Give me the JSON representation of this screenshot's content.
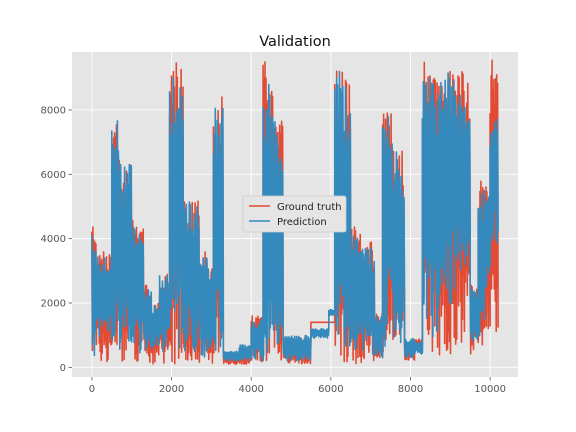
{
  "chart_data": {
    "type": "line",
    "title": "Validation",
    "xlabel": "",
    "ylabel": "",
    "xlim": [
      -500,
      10700
    ],
    "ylim": [
      -300,
      9800
    ],
    "x_ticks": [
      0,
      2000,
      4000,
      6000,
      8000,
      10000
    ],
    "y_ticks": [
      0,
      2000,
      4000,
      6000,
      8000
    ],
    "grid": true,
    "legend_placement": "center",
    "colors": {
      "Ground truth": "#E24A33",
      "Prediction": "#348ABD",
      "background": "#E5E5E5",
      "grid": "#FFFFFF"
    },
    "series": [
      {
        "name": "Ground truth",
        "segments": [
          [
            0,
            100,
            300,
            4500
          ],
          [
            100,
            500,
            100,
            3600
          ],
          [
            500,
            700,
            200,
            8000
          ],
          [
            700,
            1000,
            100,
            6400
          ],
          [
            1000,
            1300,
            100,
            4700
          ],
          [
            1300,
            1500,
            100,
            2600
          ],
          [
            1500,
            1700,
            100,
            2000
          ],
          [
            1700,
            1950,
            100,
            3000
          ],
          [
            1950,
            2300,
            100,
            9500
          ],
          [
            2300,
            2700,
            100,
            5300
          ],
          [
            2700,
            2900,
            100,
            3800
          ],
          [
            2900,
            3050,
            100,
            3200
          ],
          [
            3050,
            3300,
            100,
            8400
          ],
          [
            3300,
            3700,
            100,
            400
          ],
          [
            3700,
            4000,
            100,
            600
          ],
          [
            4000,
            4300,
            100,
            1600
          ],
          [
            4300,
            4550,
            200,
            9500
          ],
          [
            4550,
            4800,
            100,
            8000
          ],
          [
            4800,
            5500,
            100,
            900
          ],
          [
            5500,
            5950,
            1400,
            1400
          ],
          [
            5950,
            6100,
            1400,
            1400
          ],
          [
            6100,
            6300,
            300,
            9400
          ],
          [
            6300,
            6500,
            100,
            9000
          ],
          [
            6500,
            6750,
            100,
            4400
          ],
          [
            6750,
            7100,
            100,
            3900
          ],
          [
            7100,
            7300,
            100,
            1700
          ],
          [
            7300,
            7550,
            100,
            8000
          ],
          [
            7550,
            7850,
            100,
            6800
          ],
          [
            7850,
            8100,
            200,
            800
          ],
          [
            8100,
            8300,
            500,
            900
          ],
          [
            8300,
            8550,
            200,
            9500
          ],
          [
            8550,
            8800,
            300,
            9000
          ],
          [
            8800,
            9100,
            100,
            9400
          ],
          [
            9100,
            9500,
            300,
            9300
          ],
          [
            9500,
            9700,
            400,
            2600
          ],
          [
            9700,
            9850,
            600,
            5900
          ],
          [
            9850,
            10000,
            800,
            5800
          ],
          [
            10000,
            10200,
            1100,
            9600
          ]
        ]
      },
      {
        "name": "Prediction",
        "segments": [
          [
            0,
            100,
            300,
            4300
          ],
          [
            100,
            500,
            800,
            3500
          ],
          [
            500,
            700,
            300,
            7900
          ],
          [
            700,
            1000,
            600,
            6300
          ],
          [
            1000,
            1300,
            400,
            4500
          ],
          [
            1300,
            1500,
            400,
            2500
          ],
          [
            1500,
            1700,
            600,
            1900
          ],
          [
            1700,
            1950,
            500,
            2900
          ],
          [
            1950,
            2300,
            300,
            9000
          ],
          [
            2300,
            2700,
            400,
            5200
          ],
          [
            2700,
            2900,
            300,
            3700
          ],
          [
            2900,
            3050,
            400,
            3100
          ],
          [
            3050,
            3300,
            300,
            8300
          ],
          [
            3300,
            3700,
            200,
            500
          ],
          [
            3700,
            4000,
            200,
            700
          ],
          [
            4000,
            4300,
            200,
            1500
          ],
          [
            4300,
            4550,
            300,
            8800
          ],
          [
            4550,
            4800,
            300,
            7700
          ],
          [
            4800,
            5500,
            200,
            1000
          ],
          [
            5500,
            5950,
            900,
            1200
          ],
          [
            5950,
            6100,
            1600,
            1800
          ],
          [
            6100,
            6300,
            500,
            9300
          ],
          [
            6300,
            6500,
            400,
            8800
          ],
          [
            6500,
            6750,
            300,
            4200
          ],
          [
            6750,
            7100,
            300,
            3800
          ],
          [
            7100,
            7300,
            300,
            1600
          ],
          [
            7300,
            7550,
            600,
            7900
          ],
          [
            7550,
            7850,
            600,
            6700
          ],
          [
            7850,
            8100,
            300,
            900
          ],
          [
            8100,
            8300,
            400,
            800
          ],
          [
            8300,
            8550,
            800,
            9100
          ],
          [
            8550,
            8800,
            800,
            8900
          ],
          [
            8800,
            9100,
            1800,
            9300
          ],
          [
            9100,
            9500,
            2400,
            8500
          ],
          [
            9500,
            9700,
            800,
            2500
          ],
          [
            9700,
            9850,
            900,
            5700
          ],
          [
            9850,
            10000,
            2300,
            5600
          ],
          [
            10000,
            10200,
            3800,
            7800
          ]
        ]
      }
    ]
  }
}
